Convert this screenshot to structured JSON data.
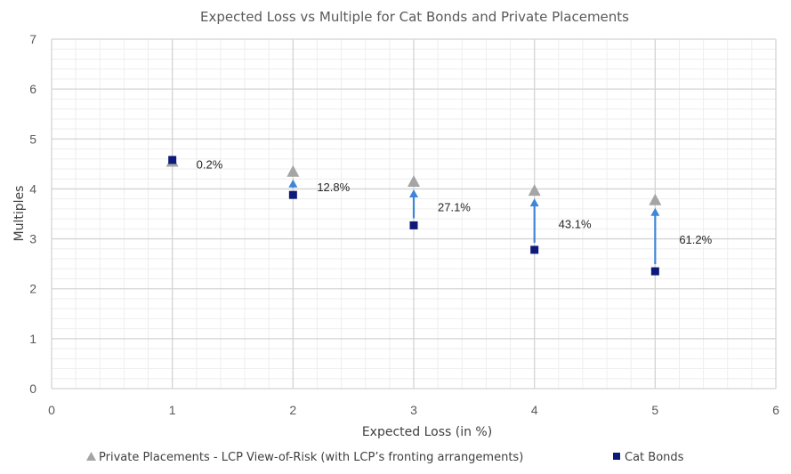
{
  "chart_data": {
    "type": "scatter",
    "title": "Expected Loss vs Multiple for Cat Bonds and Private Placements",
    "xlabel": "Expected Loss (in %)",
    "ylabel": "Multiples",
    "xlim": [
      0,
      6
    ],
    "ylim": [
      0,
      7
    ],
    "x_ticks": [
      "0",
      "1",
      "2",
      "3",
      "4",
      "5",
      "6"
    ],
    "y_ticks": [
      "0",
      "1",
      "2",
      "3",
      "4",
      "5",
      "6",
      "7"
    ],
    "grid": true,
    "legend_position": "bottom",
    "series": [
      {
        "name": "Private Placements - LCP View-of-Risk (with LCP’s fronting arrangements)",
        "marker": "triangle",
        "color": "#A5A5A5",
        "x": [
          1,
          2,
          3,
          4,
          5
        ],
        "y": [
          4.55,
          4.35,
          4.15,
          3.97,
          3.78
        ]
      },
      {
        "name": "Cat Bonds",
        "marker": "square",
        "color": "#0E1A7A",
        "x": [
          1,
          2,
          3,
          4,
          5
        ],
        "y": [
          4.58,
          3.88,
          3.27,
          2.78,
          2.35
        ]
      }
    ],
    "annotations": [
      {
        "x": 1,
        "label": "0.2%"
      },
      {
        "x": 2,
        "label": "12.8%"
      },
      {
        "x": 3,
        "label": "27.1%"
      },
      {
        "x": 4,
        "label": "43.1%"
      },
      {
        "x": 5,
        "label": "61.2%"
      }
    ],
    "arrow_color": "#3F86D8"
  }
}
